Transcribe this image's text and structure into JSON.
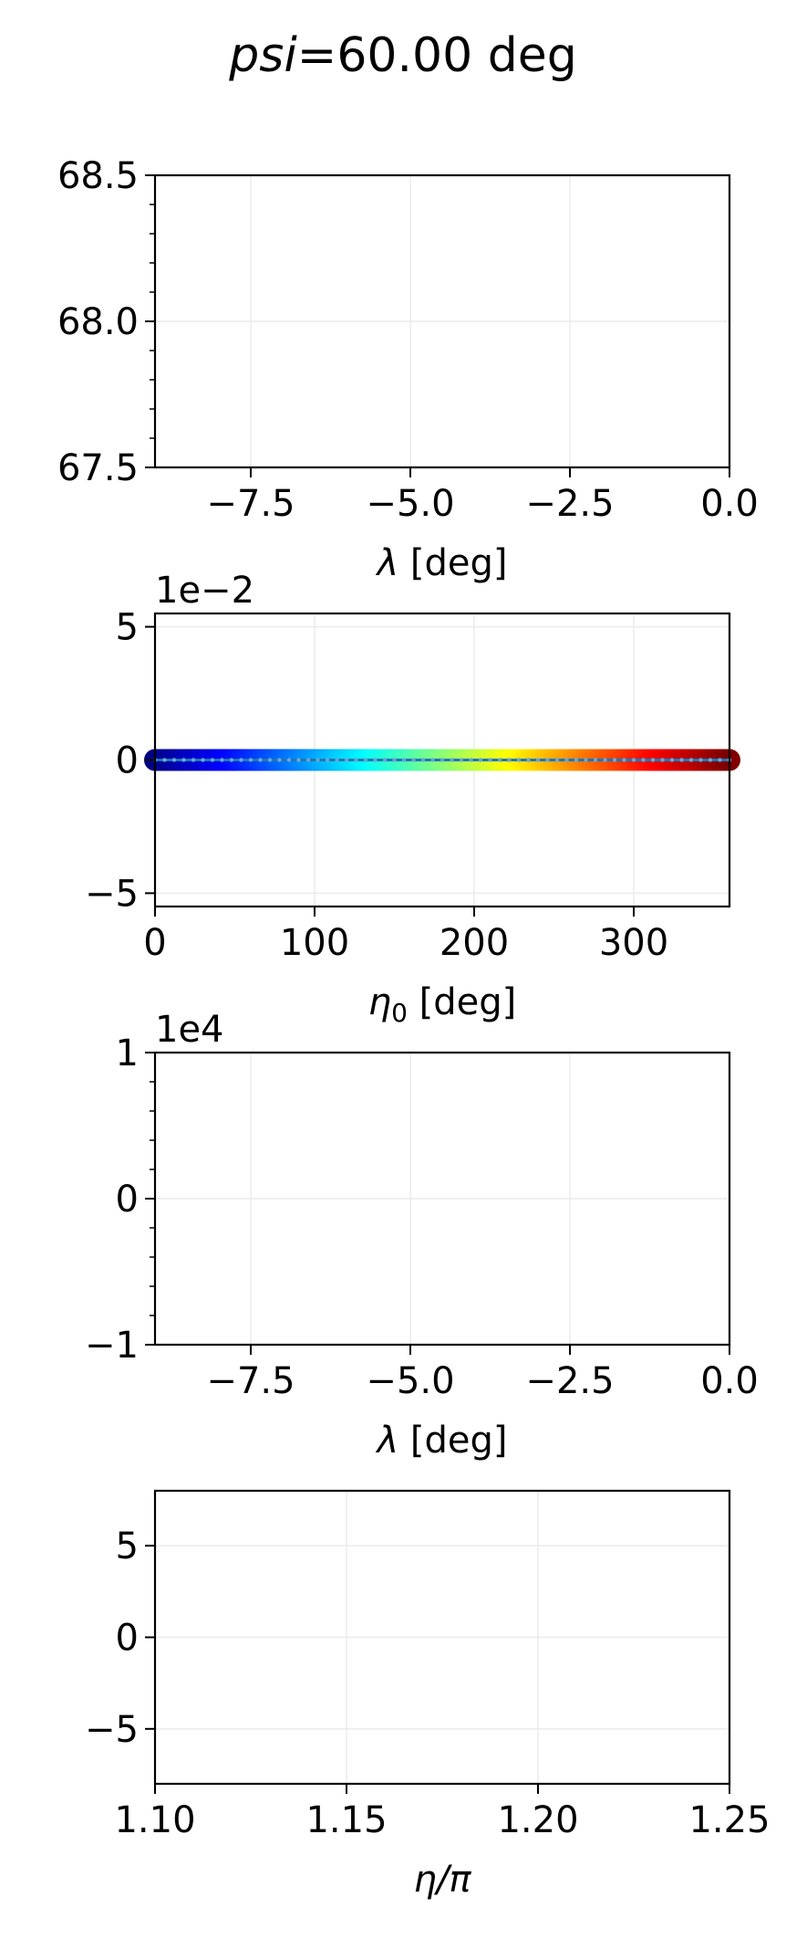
{
  "figure": {
    "title_var": "psi",
    "title_rest": "=60.00 deg"
  },
  "chart_data": [
    {
      "type": "line",
      "xlabel_var": "λ",
      "xlabel_rest": " [deg]",
      "ylabel": "",
      "xlim": [
        -9.0,
        0.0
      ],
      "ylim": [
        67.5,
        68.5
      ],
      "xticks": [
        -7.5,
        -5.0,
        -2.5,
        0.0
      ],
      "xtick_labels": [
        "−7.5",
        "−5.0",
        "−2.5",
        "0.0"
      ],
      "yticks": [
        67.5,
        68.0,
        68.5
      ],
      "ytick_labels": [
        "67.5",
        "68.0",
        "68.5"
      ],
      "y_minor_step": 0.1,
      "offset_label": "",
      "grid": true,
      "series": []
    },
    {
      "type": "scatter",
      "xlabel_var": "η",
      "xlabel_sub": "0",
      "xlabel_rest": " [deg]",
      "ylabel": "",
      "xlim": [
        0,
        360
      ],
      "ylim": [
        -5.5,
        5.5
      ],
      "xticks": [
        0,
        100,
        200,
        300
      ],
      "xtick_labels": [
        "0",
        "100",
        "200",
        "300"
      ],
      "yticks": [
        -5,
        0,
        5
      ],
      "ytick_labels": [
        "−5",
        "0",
        "5"
      ],
      "offset_label": "1e−2",
      "grid": true,
      "colormap": "jet",
      "color_by": "x",
      "point_y": 0,
      "point_x_start": 0,
      "point_x_end": 360,
      "point_x_step": 2,
      "series_line_color": "#1f77b4",
      "series_line_y": 0
    },
    {
      "type": "line",
      "xlabel_var": "λ",
      "xlabel_rest": " [deg]",
      "ylabel": "",
      "xlim": [
        -9.0,
        0.0
      ],
      "ylim": [
        -1,
        1
      ],
      "xticks": [
        -7.5,
        -5.0,
        -2.5,
        0.0
      ],
      "xtick_labels": [
        "−7.5",
        "−5.0",
        "−2.5",
        "0.0"
      ],
      "yticks": [
        -1,
        0,
        1
      ],
      "ytick_labels": [
        "−1",
        "0",
        "1"
      ],
      "y_minor_step": 0.2,
      "offset_label": "1e4",
      "grid": true,
      "series": []
    },
    {
      "type": "line",
      "xlabel_var": "η/π",
      "xlabel_rest": "",
      "ylabel": "",
      "xlim": [
        1.1,
        1.25
      ],
      "ylim": [
        -8,
        8
      ],
      "xticks": [
        1.1,
        1.15,
        1.2,
        1.25
      ],
      "xtick_labels": [
        "1.10",
        "1.15",
        "1.20",
        "1.25"
      ],
      "yticks": [
        -5,
        0,
        5
      ],
      "ytick_labels": [
        "−5",
        "0",
        "5"
      ],
      "offset_label": "",
      "grid": true,
      "series": []
    }
  ]
}
